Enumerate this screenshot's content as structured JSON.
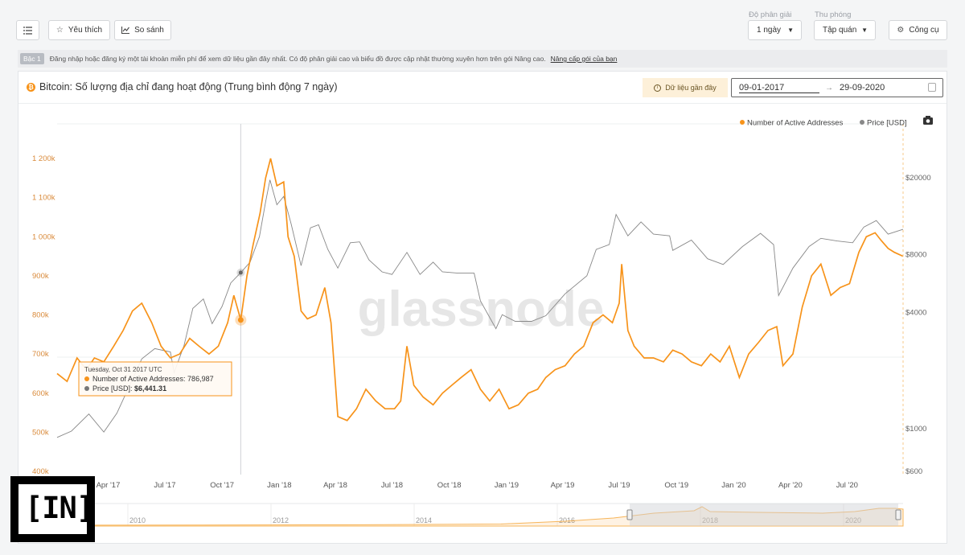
{
  "toolbar": {
    "menu_icon": "list-icon",
    "favorite_label": "Yêu thích",
    "compare_label": "So sánh",
    "resolution_label": "Độ phân giải",
    "resolution_value": "1 ngày",
    "zoom_label": "Thu phóng",
    "zoom_value": "Tập quán",
    "tools_label": "Công cụ"
  },
  "notice": {
    "tag": "Bậc 1",
    "text": "Đăng nhập hoặc đăng ký một tài khoản miễn phí để xem dữ liệu gần đây nhất. Có độ phân giải cao và biểu đồ được cập nhật thường xuyên hơn trên gói Nâng cao.",
    "link": "Nâng cấp gói của bạn"
  },
  "card": {
    "coin_symbol": "₿",
    "title": "Bitcoin: Số lượng địa chỉ đang hoạt động (Trung bình động 7 ngày)",
    "recent_label": "Dữ liệu gần đây",
    "date_from": "09-01-2017",
    "date_to": "29-09-2020",
    "watermark": "glassnode",
    "camera_icon": "camera-icon"
  },
  "tooltip": {
    "date": "Tuesday, Oct 31 2017 UTC",
    "line1": "Number of Active Addresses: 786,987",
    "line2_prefix": "Price [USD]:",
    "line2_value": "$6,441.31"
  },
  "navigator": {
    "years": [
      "2010",
      "2012",
      "2014",
      "2016",
      "2018",
      "2020"
    ]
  },
  "logo_text": "[IN]",
  "colors": {
    "active": "#f7931a",
    "price": "#888888",
    "accent": "#f7931a"
  },
  "chart_data": {
    "type": "line",
    "legend_position": "top-right",
    "x_tick_labels": [
      "Apr '17",
      "Jul '17",
      "Oct '17",
      "Jan '18",
      "Apr '18",
      "Jul '18",
      "Oct '18",
      "Jan '19",
      "Apr '19",
      "Jul '19",
      "Oct '19",
      "Jan '20",
      "Apr '20",
      "Jul '20"
    ],
    "y_left_ticks": [
      "400k",
      "500k",
      "600k",
      "700k",
      "800k",
      "900k",
      "1 000k",
      "1 100k",
      "1 200k"
    ],
    "y_left_range": [
      400000,
      1200000
    ],
    "y_right_ticks": [
      "$600",
      "$1000",
      "$4000",
      "$8000",
      "$20000"
    ],
    "y_right_scale": "log",
    "y_right_range": [
      600,
      20000
    ],
    "series": [
      {
        "name": "Number of Active Addresses",
        "axis": "left",
        "points": [
          [
            "2017-01-09",
            650000
          ],
          [
            "2017-01-25",
            630000
          ],
          [
            "2017-02-10",
            690000
          ],
          [
            "2017-02-25",
            660000
          ],
          [
            "2017-03-10",
            690000
          ],
          [
            "2017-03-25",
            680000
          ],
          [
            "2017-04-10",
            720000
          ],
          [
            "2017-04-25",
            760000
          ],
          [
            "2017-05-10",
            810000
          ],
          [
            "2017-05-25",
            830000
          ],
          [
            "2017-06-10",
            780000
          ],
          [
            "2017-06-25",
            720000
          ],
          [
            "2017-07-10",
            690000
          ],
          [
            "2017-07-25",
            700000
          ],
          [
            "2017-08-10",
            740000
          ],
          [
            "2017-08-25",
            720000
          ],
          [
            "2017-09-10",
            700000
          ],
          [
            "2017-09-25",
            720000
          ],
          [
            "2017-10-10",
            780000
          ],
          [
            "2017-10-20",
            850000
          ],
          [
            "2017-10-31",
            786987
          ],
          [
            "2017-11-10",
            900000
          ],
          [
            "2017-11-20",
            980000
          ],
          [
            "2017-12-01",
            1060000
          ],
          [
            "2017-12-10",
            1150000
          ],
          [
            "2017-12-18",
            1200000
          ],
          [
            "2017-12-28",
            1130000
          ],
          [
            "2018-01-08",
            1140000
          ],
          [
            "2018-01-15",
            1000000
          ],
          [
            "2018-01-25",
            950000
          ],
          [
            "2018-02-05",
            810000
          ],
          [
            "2018-02-15",
            790000
          ],
          [
            "2018-03-01",
            800000
          ],
          [
            "2018-03-15",
            870000
          ],
          [
            "2018-03-25",
            780000
          ],
          [
            "2018-04-05",
            540000
          ],
          [
            "2018-04-20",
            530000
          ],
          [
            "2018-05-05",
            560000
          ],
          [
            "2018-05-20",
            610000
          ],
          [
            "2018-06-05",
            580000
          ],
          [
            "2018-06-20",
            560000
          ],
          [
            "2018-07-05",
            560000
          ],
          [
            "2018-07-15",
            580000
          ],
          [
            "2018-07-25",
            720000
          ],
          [
            "2018-08-05",
            620000
          ],
          [
            "2018-08-20",
            590000
          ],
          [
            "2018-09-05",
            570000
          ],
          [
            "2018-09-20",
            600000
          ],
          [
            "2018-10-05",
            620000
          ],
          [
            "2018-10-20",
            640000
          ],
          [
            "2018-11-05",
            660000
          ],
          [
            "2018-11-20",
            610000
          ],
          [
            "2018-12-05",
            580000
          ],
          [
            "2018-12-20",
            610000
          ],
          [
            "2019-01-05",
            560000
          ],
          [
            "2019-01-20",
            570000
          ],
          [
            "2019-02-05",
            600000
          ],
          [
            "2019-02-20",
            610000
          ],
          [
            "2019-03-05",
            640000
          ],
          [
            "2019-03-20",
            660000
          ],
          [
            "2019-04-05",
            670000
          ],
          [
            "2019-04-20",
            700000
          ],
          [
            "2019-05-05",
            720000
          ],
          [
            "2019-05-20",
            780000
          ],
          [
            "2019-06-05",
            800000
          ],
          [
            "2019-06-20",
            780000
          ],
          [
            "2019-07-01",
            830000
          ],
          [
            "2019-07-05",
            930000
          ],
          [
            "2019-07-15",
            760000
          ],
          [
            "2019-07-25",
            720000
          ],
          [
            "2019-08-10",
            690000
          ],
          [
            "2019-08-25",
            690000
          ],
          [
            "2019-09-10",
            680000
          ],
          [
            "2019-09-25",
            710000
          ],
          [
            "2019-10-10",
            700000
          ],
          [
            "2019-10-25",
            680000
          ],
          [
            "2019-11-10",
            670000
          ],
          [
            "2019-11-25",
            700000
          ],
          [
            "2019-12-10",
            680000
          ],
          [
            "2019-12-25",
            720000
          ],
          [
            "2020-01-10",
            640000
          ],
          [
            "2020-01-25",
            700000
          ],
          [
            "2020-02-10",
            730000
          ],
          [
            "2020-02-25",
            760000
          ],
          [
            "2020-03-10",
            770000
          ],
          [
            "2020-03-20",
            670000
          ],
          [
            "2020-04-05",
            700000
          ],
          [
            "2020-04-20",
            820000
          ],
          [
            "2020-05-05",
            900000
          ],
          [
            "2020-05-20",
            930000
          ],
          [
            "2020-06-05",
            850000
          ],
          [
            "2020-06-20",
            870000
          ],
          [
            "2020-07-05",
            880000
          ],
          [
            "2020-07-20",
            960000
          ],
          [
            "2020-08-01",
            1000000
          ],
          [
            "2020-08-15",
            1010000
          ],
          [
            "2020-08-25",
            990000
          ],
          [
            "2020-09-05",
            970000
          ],
          [
            "2020-09-15",
            960000
          ],
          [
            "2020-09-29",
            950000
          ]
        ]
      },
      {
        "name": "Price [USD]",
        "axis": "right",
        "points": [
          [
            "2017-01-09",
            900
          ],
          [
            "2017-02-01",
            970
          ],
          [
            "2017-03-01",
            1190
          ],
          [
            "2017-03-25",
            960
          ],
          [
            "2017-04-15",
            1200
          ],
          [
            "2017-05-10",
            1800
          ],
          [
            "2017-05-25",
            2300
          ],
          [
            "2017-06-15",
            2600
          ],
          [
            "2017-07-10",
            2500
          ],
          [
            "2017-07-16",
            1950
          ],
          [
            "2017-08-01",
            2700
          ],
          [
            "2017-08-15",
            4200
          ],
          [
            "2017-09-01",
            4700
          ],
          [
            "2017-09-15",
            3500
          ],
          [
            "2017-10-01",
            4300
          ],
          [
            "2017-10-15",
            5700
          ],
          [
            "2017-10-31",
            6441.31
          ],
          [
            "2017-11-15",
            7300
          ],
          [
            "2017-11-30",
            9900
          ],
          [
            "2017-12-10",
            15000
          ],
          [
            "2017-12-17",
            19500
          ],
          [
            "2017-12-28",
            14500
          ],
          [
            "2018-01-08",
            16000
          ],
          [
            "2018-01-20",
            11500
          ],
          [
            "2018-02-05",
            7000
          ],
          [
            "2018-02-20",
            11000
          ],
          [
            "2018-03-05",
            11400
          ],
          [
            "2018-03-20",
            8500
          ],
          [
            "2018-04-05",
            6800
          ],
          [
            "2018-04-25",
            9200
          ],
          [
            "2018-05-10",
            9300
          ],
          [
            "2018-05-25",
            7500
          ],
          [
            "2018-06-15",
            6500
          ],
          [
            "2018-07-01",
            6300
          ],
          [
            "2018-07-25",
            8200
          ],
          [
            "2018-08-15",
            6300
          ],
          [
            "2018-09-05",
            7300
          ],
          [
            "2018-09-20",
            6500
          ],
          [
            "2018-10-15",
            6400
          ],
          [
            "2018-11-10",
            6400
          ],
          [
            "2018-11-20",
            4600
          ],
          [
            "2018-12-15",
            3300
          ],
          [
            "2018-12-25",
            3900
          ],
          [
            "2019-01-15",
            3600
          ],
          [
            "2019-02-10",
            3600
          ],
          [
            "2019-03-05",
            3850
          ],
          [
            "2019-04-05",
            5000
          ],
          [
            "2019-05-10",
            6200
          ],
          [
            "2019-05-25",
            8500
          ],
          [
            "2019-06-15",
            9000
          ],
          [
            "2019-06-26",
            12900
          ],
          [
            "2019-07-15",
            10000
          ],
          [
            "2019-08-05",
            11800
          ],
          [
            "2019-08-25",
            10200
          ],
          [
            "2019-09-20",
            10000
          ],
          [
            "2019-09-25",
            8400
          ],
          [
            "2019-10-25",
            9500
          ],
          [
            "2019-11-20",
            7600
          ],
          [
            "2019-12-15",
            7100
          ],
          [
            "2020-01-15",
            8800
          ],
          [
            "2020-02-13",
            10300
          ],
          [
            "2020-03-05",
            9000
          ],
          [
            "2020-03-13",
            4900
          ],
          [
            "2020-04-05",
            6800
          ],
          [
            "2020-05-01",
            8800
          ],
          [
            "2020-05-20",
            9700
          ],
          [
            "2020-06-15",
            9400
          ],
          [
            "2020-07-10",
            9200
          ],
          [
            "2020-07-28",
            11100
          ],
          [
            "2020-08-17",
            12000
          ],
          [
            "2020-09-05",
            10200
          ],
          [
            "2020-09-29",
            10800
          ]
        ]
      }
    ],
    "tooltip_date": "2017-10-31"
  }
}
